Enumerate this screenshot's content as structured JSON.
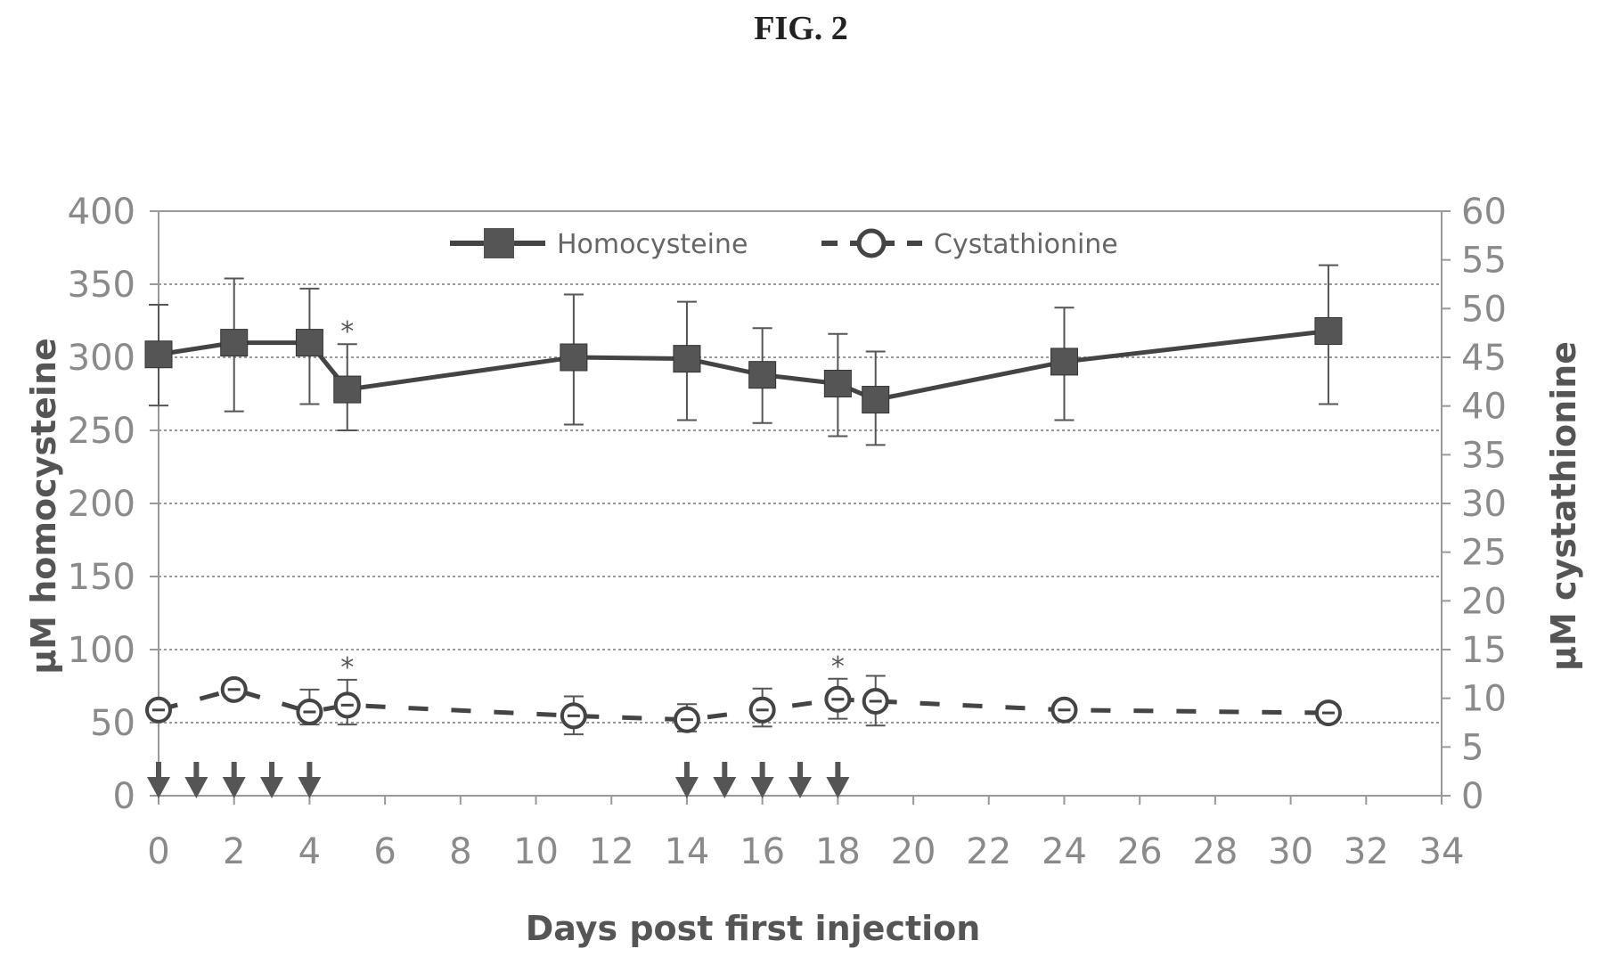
{
  "figure_label": "FIG. 2",
  "chart_data": {
    "type": "line",
    "title": "",
    "xlabel": "Days post first injection",
    "ylabel": "µM homocysteine",
    "y2label": "µM cystathionine",
    "xlim": [
      0,
      34
    ],
    "ylim": [
      0,
      400
    ],
    "y2lim": [
      0,
      60
    ],
    "x_ticks": [
      "0",
      "2",
      "4",
      "6",
      "8",
      "10",
      "12",
      "14",
      "16",
      "18",
      "20",
      "22",
      "24",
      "26",
      "28",
      "30",
      "32",
      "34"
    ],
    "y_ticks": [
      "0",
      "50",
      "100",
      "150",
      "200",
      "250",
      "300",
      "350",
      "400"
    ],
    "y2_ticks": [
      "0",
      "5",
      "10",
      "15",
      "20",
      "25",
      "30",
      "35",
      "40",
      "45",
      "50",
      "55",
      "60"
    ],
    "grid": true,
    "legend_position": "top",
    "series": [
      {
        "name": "Homocysteine",
        "axis": "left",
        "marker": "square",
        "line": "solid",
        "x": [
          0,
          2,
          4,
          5,
          11,
          14,
          16,
          18,
          19,
          24,
          31
        ],
        "y": [
          302,
          310,
          310,
          278,
          300,
          299,
          288,
          282,
          271,
          297,
          318
        ],
        "err_low": [
          267,
          263,
          268,
          250,
          254,
          257,
          255,
          246,
          240,
          257,
          268
        ],
        "err_high": [
          336,
          354,
          347,
          309,
          343,
          338,
          320,
          316,
          304,
          334,
          363
        ]
      },
      {
        "name": "Cystathionine",
        "axis": "right",
        "marker": "circle",
        "line": "dashed",
        "x": [
          0,
          2,
          4,
          5,
          11,
          14,
          16,
          18,
          19,
          24,
          31
        ],
        "y": [
          8.8,
          10.9,
          8.6,
          9.3,
          8.2,
          7.8,
          8.8,
          9.9,
          9.7,
          8.8,
          8.5
        ],
        "err_low": [
          8.8,
          10.9,
          7.3,
          7.3,
          6.3,
          6.6,
          7.1,
          7.9,
          7.2,
          8.8,
          8.5
        ],
        "err_high": [
          8.8,
          10.9,
          10.9,
          11.9,
          10.2,
          9.4,
          11.0,
          12.0,
          12.3,
          8.8,
          8.5
        ]
      }
    ],
    "significance_marks": [
      {
        "text": "*",
        "x": 5,
        "series": "Homocysteine"
      },
      {
        "text": "*",
        "x": 5,
        "series": "Cystathionine"
      },
      {
        "text": "*",
        "x": 18,
        "series": "Cystathionine"
      }
    ],
    "injection_days": [
      0,
      1,
      2,
      3,
      4,
      14,
      15,
      16,
      17,
      18
    ]
  }
}
